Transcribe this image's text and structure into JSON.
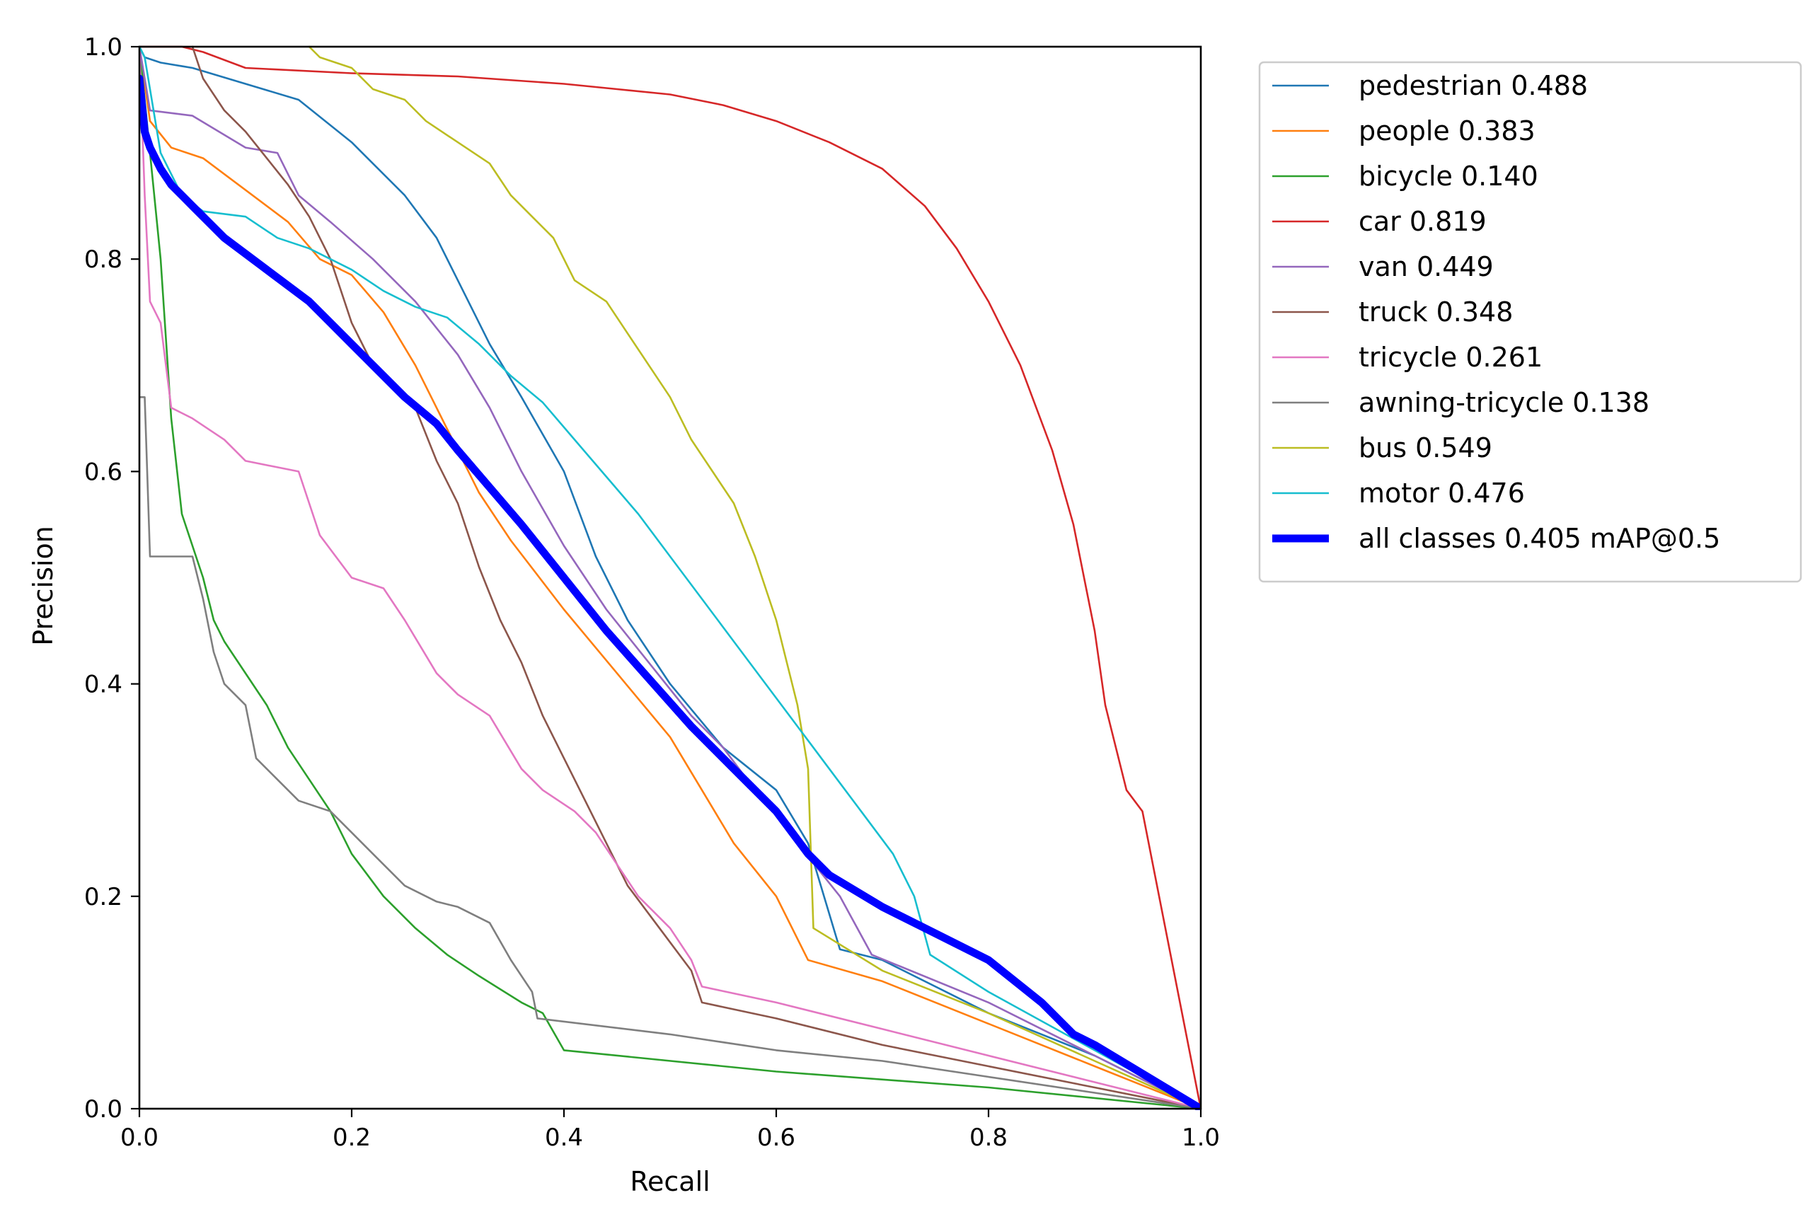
{
  "chart_data": {
    "type": "line",
    "title": "",
    "xlabel": "Recall",
    "ylabel": "Precision",
    "xlim": [
      0.0,
      1.0
    ],
    "ylim": [
      0.0,
      1.0
    ],
    "xticks": [
      "0.0",
      "0.2",
      "0.4",
      "0.6",
      "0.8",
      "1.0"
    ],
    "yticks": [
      "0.0",
      "0.2",
      "0.4",
      "0.6",
      "0.8",
      "1.0"
    ],
    "grid": false,
    "legend_position": "outside-upper-right",
    "series": [
      {
        "name": "pedestrian 0.488",
        "color": "#1f77b4",
        "points": [
          [
            0,
            1.0
          ],
          [
            0.005,
            0.99
          ],
          [
            0.02,
            0.985
          ],
          [
            0.05,
            0.98
          ],
          [
            0.1,
            0.965
          ],
          [
            0.15,
            0.95
          ],
          [
            0.2,
            0.91
          ],
          [
            0.25,
            0.86
          ],
          [
            0.28,
            0.82
          ],
          [
            0.3,
            0.78
          ],
          [
            0.33,
            0.72
          ],
          [
            0.36,
            0.67
          ],
          [
            0.4,
            0.6
          ],
          [
            0.43,
            0.52
          ],
          [
            0.46,
            0.46
          ],
          [
            0.5,
            0.4
          ],
          [
            0.55,
            0.34
          ],
          [
            0.6,
            0.3
          ],
          [
            0.63,
            0.25
          ],
          [
            0.66,
            0.15
          ],
          [
            0.7,
            0.14
          ],
          [
            0.8,
            0.09
          ],
          [
            0.9,
            0.05
          ],
          [
            1.0,
            0.0
          ]
        ]
      },
      {
        "name": "people 0.383",
        "color": "#ff7f0e",
        "points": [
          [
            0,
            1.0
          ],
          [
            0.01,
            0.93
          ],
          [
            0.03,
            0.905
          ],
          [
            0.06,
            0.895
          ],
          [
            0.1,
            0.865
          ],
          [
            0.14,
            0.835
          ],
          [
            0.17,
            0.8
          ],
          [
            0.2,
            0.785
          ],
          [
            0.23,
            0.75
          ],
          [
            0.26,
            0.7
          ],
          [
            0.29,
            0.64
          ],
          [
            0.32,
            0.58
          ],
          [
            0.35,
            0.535
          ],
          [
            0.4,
            0.47
          ],
          [
            0.45,
            0.41
          ],
          [
            0.5,
            0.35
          ],
          [
            0.53,
            0.3
          ],
          [
            0.56,
            0.25
          ],
          [
            0.6,
            0.2
          ],
          [
            0.63,
            0.14
          ],
          [
            0.7,
            0.12
          ],
          [
            0.8,
            0.08
          ],
          [
            0.9,
            0.04
          ],
          [
            1.0,
            0.0
          ]
        ]
      },
      {
        "name": "bicycle 0.140",
        "color": "#2ca02c",
        "points": [
          [
            0,
            1.0
          ],
          [
            0.01,
            0.9
          ],
          [
            0.02,
            0.8
          ],
          [
            0.03,
            0.65
          ],
          [
            0.04,
            0.56
          ],
          [
            0.05,
            0.53
          ],
          [
            0.06,
            0.5
          ],
          [
            0.07,
            0.46
          ],
          [
            0.08,
            0.44
          ],
          [
            0.1,
            0.41
          ],
          [
            0.12,
            0.38
          ],
          [
            0.14,
            0.34
          ],
          [
            0.16,
            0.31
          ],
          [
            0.18,
            0.28
          ],
          [
            0.2,
            0.24
          ],
          [
            0.23,
            0.2
          ],
          [
            0.26,
            0.17
          ],
          [
            0.29,
            0.145
          ],
          [
            0.32,
            0.125
          ],
          [
            0.36,
            0.1
          ],
          [
            0.38,
            0.09
          ],
          [
            0.4,
            0.055
          ],
          [
            0.6,
            0.035
          ],
          [
            0.8,
            0.02
          ],
          [
            1.0,
            0.0
          ]
        ]
      },
      {
        "name": "car 0.819",
        "color": "#d62728",
        "points": [
          [
            0,
            1.0
          ],
          [
            0.04,
            1.0
          ],
          [
            0.06,
            0.995
          ],
          [
            0.1,
            0.98
          ],
          [
            0.2,
            0.975
          ],
          [
            0.3,
            0.972
          ],
          [
            0.4,
            0.965
          ],
          [
            0.45,
            0.96
          ],
          [
            0.5,
            0.955
          ],
          [
            0.55,
            0.945
          ],
          [
            0.6,
            0.93
          ],
          [
            0.65,
            0.91
          ],
          [
            0.7,
            0.885
          ],
          [
            0.74,
            0.85
          ],
          [
            0.77,
            0.81
          ],
          [
            0.8,
            0.76
          ],
          [
            0.83,
            0.7
          ],
          [
            0.86,
            0.62
          ],
          [
            0.88,
            0.55
          ],
          [
            0.9,
            0.45
          ],
          [
            0.91,
            0.38
          ],
          [
            0.93,
            0.3
          ],
          [
            0.945,
            0.28
          ],
          [
            1.0,
            0.0
          ]
        ]
      },
      {
        "name": "van 0.449",
        "color": "#9467bd",
        "points": [
          [
            0,
            1.0
          ],
          [
            0.01,
            0.94
          ],
          [
            0.05,
            0.935
          ],
          [
            0.1,
            0.905
          ],
          [
            0.13,
            0.9
          ],
          [
            0.15,
            0.86
          ],
          [
            0.18,
            0.835
          ],
          [
            0.22,
            0.8
          ],
          [
            0.26,
            0.76
          ],
          [
            0.3,
            0.71
          ],
          [
            0.33,
            0.66
          ],
          [
            0.36,
            0.6
          ],
          [
            0.4,
            0.53
          ],
          [
            0.44,
            0.47
          ],
          [
            0.48,
            0.42
          ],
          [
            0.52,
            0.37
          ],
          [
            0.55,
            0.34
          ],
          [
            0.58,
            0.3
          ],
          [
            0.6,
            0.28
          ],
          [
            0.62,
            0.25
          ],
          [
            0.66,
            0.2
          ],
          [
            0.69,
            0.145
          ],
          [
            0.8,
            0.1
          ],
          [
            0.9,
            0.05
          ],
          [
            1.0,
            0.0
          ]
        ]
      },
      {
        "name": "truck 0.348",
        "color": "#8c564b",
        "points": [
          [
            0.05,
            1.0
          ],
          [
            0.06,
            0.97
          ],
          [
            0.08,
            0.94
          ],
          [
            0.1,
            0.92
          ],
          [
            0.12,
            0.895
          ],
          [
            0.14,
            0.87
          ],
          [
            0.16,
            0.84
          ],
          [
            0.18,
            0.8
          ],
          [
            0.2,
            0.74
          ],
          [
            0.22,
            0.7
          ],
          [
            0.24,
            0.68
          ],
          [
            0.26,
            0.66
          ],
          [
            0.28,
            0.61
          ],
          [
            0.3,
            0.57
          ],
          [
            0.32,
            0.51
          ],
          [
            0.34,
            0.46
          ],
          [
            0.36,
            0.42
          ],
          [
            0.38,
            0.37
          ],
          [
            0.4,
            0.33
          ],
          [
            0.42,
            0.29
          ],
          [
            0.44,
            0.25
          ],
          [
            0.46,
            0.21
          ],
          [
            0.49,
            0.17
          ],
          [
            0.52,
            0.13
          ],
          [
            0.53,
            0.1
          ],
          [
            0.6,
            0.085
          ],
          [
            0.7,
            0.06
          ],
          [
            0.8,
            0.04
          ],
          [
            0.9,
            0.02
          ],
          [
            1.0,
            0.0
          ]
        ]
      },
      {
        "name": "tricycle 0.261",
        "color": "#e377c2",
        "points": [
          [
            0,
            1.0
          ],
          [
            0.005,
            0.86
          ],
          [
            0.01,
            0.76
          ],
          [
            0.02,
            0.74
          ],
          [
            0.03,
            0.66
          ],
          [
            0.05,
            0.65
          ],
          [
            0.08,
            0.63
          ],
          [
            0.1,
            0.61
          ],
          [
            0.15,
            0.6
          ],
          [
            0.17,
            0.54
          ],
          [
            0.2,
            0.5
          ],
          [
            0.23,
            0.49
          ],
          [
            0.25,
            0.46
          ],
          [
            0.28,
            0.41
          ],
          [
            0.3,
            0.39
          ],
          [
            0.33,
            0.37
          ],
          [
            0.36,
            0.32
          ],
          [
            0.38,
            0.3
          ],
          [
            0.41,
            0.28
          ],
          [
            0.43,
            0.26
          ],
          [
            0.45,
            0.23
          ],
          [
            0.47,
            0.2
          ],
          [
            0.5,
            0.17
          ],
          [
            0.52,
            0.14
          ],
          [
            0.53,
            0.115
          ],
          [
            0.6,
            0.1
          ],
          [
            0.7,
            0.075
          ],
          [
            0.8,
            0.05
          ],
          [
            0.9,
            0.025
          ],
          [
            1.0,
            0.0
          ]
        ]
      },
      {
        "name": "awning-tricycle 0.138",
        "color": "#7f7f7f",
        "points": [
          [
            0,
            0.67
          ],
          [
            0.005,
            0.67
          ],
          [
            0.01,
            0.52
          ],
          [
            0.05,
            0.52
          ],
          [
            0.06,
            0.48
          ],
          [
            0.07,
            0.43
          ],
          [
            0.08,
            0.4
          ],
          [
            0.1,
            0.38
          ],
          [
            0.11,
            0.33
          ],
          [
            0.13,
            0.31
          ],
          [
            0.15,
            0.29
          ],
          [
            0.18,
            0.28
          ],
          [
            0.2,
            0.26
          ],
          [
            0.22,
            0.24
          ],
          [
            0.25,
            0.21
          ],
          [
            0.28,
            0.195
          ],
          [
            0.3,
            0.19
          ],
          [
            0.33,
            0.175
          ],
          [
            0.35,
            0.14
          ],
          [
            0.37,
            0.11
          ],
          [
            0.375,
            0.085
          ],
          [
            0.5,
            0.07
          ],
          [
            0.6,
            0.055
          ],
          [
            0.7,
            0.045
          ],
          [
            0.8,
            0.03
          ],
          [
            0.9,
            0.015
          ],
          [
            1.0,
            0.0
          ]
        ]
      },
      {
        "name": "bus 0.549",
        "color": "#bcbd22",
        "points": [
          [
            0.16,
            1.0
          ],
          [
            0.17,
            0.99
          ],
          [
            0.2,
            0.98
          ],
          [
            0.22,
            0.96
          ],
          [
            0.25,
            0.95
          ],
          [
            0.27,
            0.93
          ],
          [
            0.3,
            0.91
          ],
          [
            0.33,
            0.89
          ],
          [
            0.35,
            0.86
          ],
          [
            0.37,
            0.84
          ],
          [
            0.39,
            0.82
          ],
          [
            0.41,
            0.78
          ],
          [
            0.44,
            0.76
          ],
          [
            0.46,
            0.73
          ],
          [
            0.48,
            0.7
          ],
          [
            0.5,
            0.67
          ],
          [
            0.52,
            0.63
          ],
          [
            0.54,
            0.6
          ],
          [
            0.56,
            0.57
          ],
          [
            0.58,
            0.52
          ],
          [
            0.6,
            0.46
          ],
          [
            0.61,
            0.42
          ],
          [
            0.62,
            0.38
          ],
          [
            0.63,
            0.32
          ],
          [
            0.635,
            0.17
          ],
          [
            0.7,
            0.13
          ],
          [
            0.8,
            0.09
          ],
          [
            0.9,
            0.045
          ],
          [
            1.0,
            0.0
          ]
        ]
      },
      {
        "name": "motor 0.476",
        "color": "#17becf",
        "points": [
          [
            0,
            1.0
          ],
          [
            0.005,
            0.99
          ],
          [
            0.02,
            0.9
          ],
          [
            0.04,
            0.86
          ],
          [
            0.06,
            0.845
          ],
          [
            0.1,
            0.84
          ],
          [
            0.13,
            0.82
          ],
          [
            0.16,
            0.81
          ],
          [
            0.2,
            0.79
          ],
          [
            0.23,
            0.77
          ],
          [
            0.26,
            0.755
          ],
          [
            0.29,
            0.745
          ],
          [
            0.32,
            0.72
          ],
          [
            0.35,
            0.69
          ],
          [
            0.38,
            0.665
          ],
          [
            0.41,
            0.63
          ],
          [
            0.44,
            0.595
          ],
          [
            0.47,
            0.56
          ],
          [
            0.5,
            0.52
          ],
          [
            0.53,
            0.48
          ],
          [
            0.56,
            0.44
          ],
          [
            0.59,
            0.4
          ],
          [
            0.62,
            0.36
          ],
          [
            0.65,
            0.32
          ],
          [
            0.68,
            0.28
          ],
          [
            0.71,
            0.24
          ],
          [
            0.73,
            0.2
          ],
          [
            0.745,
            0.145
          ],
          [
            0.8,
            0.11
          ],
          [
            0.9,
            0.055
          ],
          [
            1.0,
            0.0
          ]
        ]
      },
      {
        "name": "all classes 0.405 mAP@0.5",
        "color": "#0000ff",
        "bold": true,
        "points": [
          [
            0,
            0.97
          ],
          [
            0.005,
            0.92
          ],
          [
            0.01,
            0.905
          ],
          [
            0.02,
            0.885
          ],
          [
            0.03,
            0.87
          ],
          [
            0.04,
            0.86
          ],
          [
            0.05,
            0.85
          ],
          [
            0.06,
            0.84
          ],
          [
            0.08,
            0.82
          ],
          [
            0.1,
            0.805
          ],
          [
            0.12,
            0.79
          ],
          [
            0.14,
            0.775
          ],
          [
            0.16,
            0.76
          ],
          [
            0.18,
            0.74
          ],
          [
            0.2,
            0.72
          ],
          [
            0.22,
            0.7
          ],
          [
            0.25,
            0.67
          ],
          [
            0.28,
            0.645
          ],
          [
            0.3,
            0.62
          ],
          [
            0.33,
            0.585
          ],
          [
            0.36,
            0.55
          ],
          [
            0.4,
            0.5
          ],
          [
            0.44,
            0.45
          ],
          [
            0.48,
            0.405
          ],
          [
            0.52,
            0.36
          ],
          [
            0.56,
            0.32
          ],
          [
            0.6,
            0.28
          ],
          [
            0.63,
            0.24
          ],
          [
            0.65,
            0.22
          ],
          [
            0.7,
            0.19
          ],
          [
            0.75,
            0.165
          ],
          [
            0.8,
            0.14
          ],
          [
            0.85,
            0.1
          ],
          [
            0.88,
            0.07
          ],
          [
            0.9,
            0.06
          ],
          [
            0.95,
            0.03
          ],
          [
            1.0,
            0.0
          ]
        ]
      }
    ]
  }
}
